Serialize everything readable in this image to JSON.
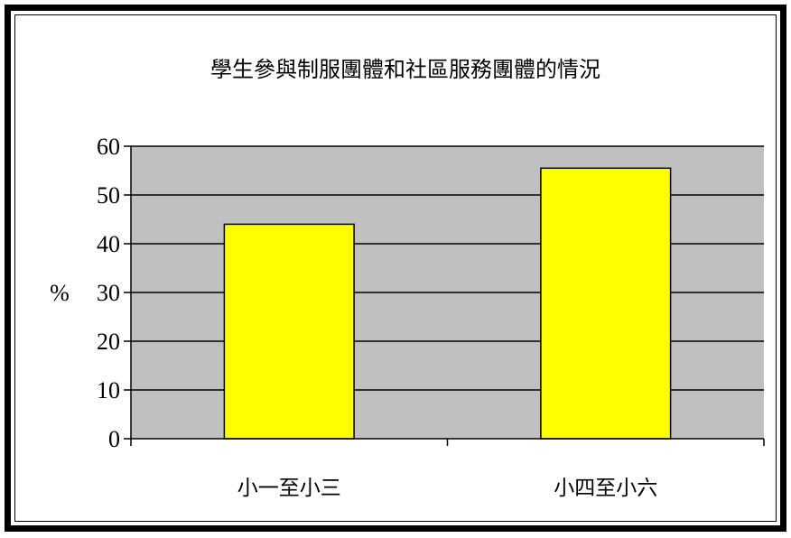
{
  "chart_data": {
    "type": "bar",
    "title": "學生參與制服團體和社區服務團體的情況",
    "xlabel": "",
    "ylabel": "%",
    "ylim": [
      0,
      60
    ],
    "yticks": [
      0,
      10,
      20,
      30,
      40,
      50,
      60
    ],
    "categories": [
      "小一至小三",
      "小四至小六"
    ],
    "values": [
      44,
      55.5
    ],
    "grid": true,
    "legend": "none",
    "colors": {
      "bar": "#ffff00",
      "plot_background": "#c0c0c0",
      "gridline": "#000000"
    }
  }
}
